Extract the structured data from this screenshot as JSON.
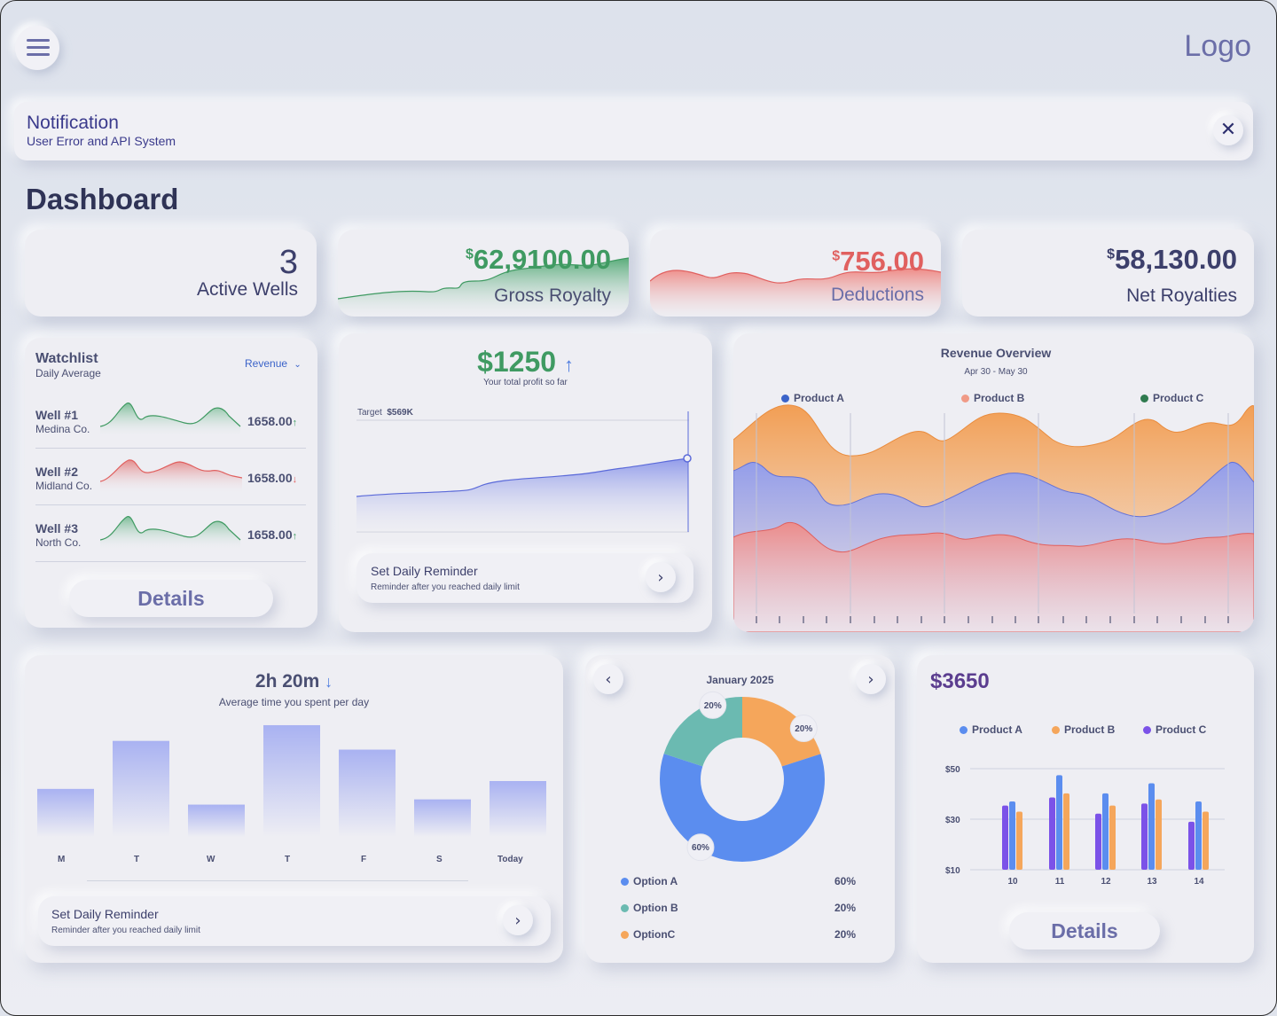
{
  "header": {
    "menu_icon": "hamburger-menu-icon",
    "logo": "Logo"
  },
  "notification": {
    "title": "Notification",
    "message": "User Error and API System",
    "close_icon": "close-icon"
  },
  "page_title": "Dashboard",
  "stats": {
    "active_wells": {
      "value": "3",
      "label": "Active Wells"
    },
    "gross_royalty": {
      "currency": "$",
      "value": "62,9100.00",
      "label": "Gross Royalty",
      "color": "#3f9a62"
    },
    "deductions": {
      "currency": "$",
      "value": "756.00",
      "label": "Deductions",
      "color": "#e0605f"
    },
    "net_royalties": {
      "currency": "$",
      "value": "58,130.00",
      "label": "Net Royalties"
    }
  },
  "watchlist": {
    "title": "Watchlist",
    "subtitle": "Daily Average",
    "filter": "Revenue",
    "items": [
      {
        "name": "Well #1",
        "company": "Medina Co.",
        "value": "1658.00",
        "trend": "↑",
        "color": "#3f9a62"
      },
      {
        "name": "Well #2",
        "company": "Midland Co.",
        "value": "1658.00",
        "trend": "↓",
        "color": "#e0605f"
      },
      {
        "name": "Well #3",
        "company": "North Co.",
        "value": "1658.00",
        "trend": "↑",
        "color": "#3f9a62"
      }
    ],
    "details_label": "Details"
  },
  "profit": {
    "value": "$1250",
    "trend": "↑",
    "caption": "Your total profit so far",
    "target_label": "Target",
    "target_value": "$569K",
    "reminder_title": "Set Daily Reminder",
    "reminder_text": "Reminder after you reached daily limit"
  },
  "revenue_overview": {
    "title": "Revenue Overview",
    "date_range": "Apr 30 - May 30",
    "legend": [
      {
        "name": "Product A",
        "color": "#3b63c9"
      },
      {
        "name": "Product B",
        "color": "#f09a86"
      },
      {
        "name": "Product C",
        "color": "#2f7a4f"
      }
    ]
  },
  "time_spent": {
    "value": "2h 20m",
    "trend": "↓",
    "caption": "Average time you spent per day",
    "reminder_title": "Set Daily Reminder",
    "reminder_text": "Reminder after you reached daily limit"
  },
  "donut": {
    "month": "January 2025",
    "prev_icon": "chevron-left-icon",
    "next_icon": "chevron-right-icon",
    "options": [
      {
        "name": "Option A",
        "percent": "60%",
        "value": 60,
        "color": "#5b8def"
      },
      {
        "name": "Option B",
        "percent": "20%",
        "value": 20,
        "color": "#6bbab1"
      },
      {
        "name": "OptionC",
        "percent": "20%",
        "value": 20,
        "color": "#f5a65b"
      }
    ]
  },
  "product_bars": {
    "total": "$3650",
    "legend": [
      {
        "name": "Product A",
        "color": "#5b8def"
      },
      {
        "name": "Product B",
        "color": "#f5a65b"
      },
      {
        "name": "Product C",
        "color": "#7b52e8"
      }
    ],
    "details_label": "Details"
  },
  "chart_data": [
    {
      "type": "bar",
      "categories": [
        "M",
        "T",
        "W",
        "T",
        "F",
        "S",
        "Today"
      ],
      "values": [
        55,
        110,
        37,
        128,
        100,
        43,
        64
      ],
      "ylim": [
        0,
        130
      ],
      "grid": false
    },
    {
      "type": "pie",
      "categories": [
        "Option A",
        "Option B",
        "OptionC"
      ],
      "values": [
        60,
        20,
        20
      ]
    },
    {
      "type": "bar",
      "categories": [
        "10",
        "11",
        "12",
        "13",
        "14"
      ],
      "series": [
        {
          "name": "Product C",
          "values": [
            30,
            34,
            26,
            31,
            22
          ]
        },
        {
          "name": "Product A",
          "values": [
            32,
            45,
            36,
            41,
            32
          ]
        },
        {
          "name": "Product B",
          "values": [
            27,
            36,
            30,
            33,
            27
          ]
        }
      ],
      "yticks": [
        "$50",
        "$30",
        "$10"
      ],
      "ylim": [
        10,
        50
      ],
      "grid": true
    },
    {
      "type": "area",
      "title": "Revenue Overview",
      "series": [
        {
          "name": "Product A"
        },
        {
          "name": "Product B"
        },
        {
          "name": "Product C"
        }
      ],
      "legend": "top"
    },
    {
      "type": "area",
      "target": "$569K"
    }
  ]
}
